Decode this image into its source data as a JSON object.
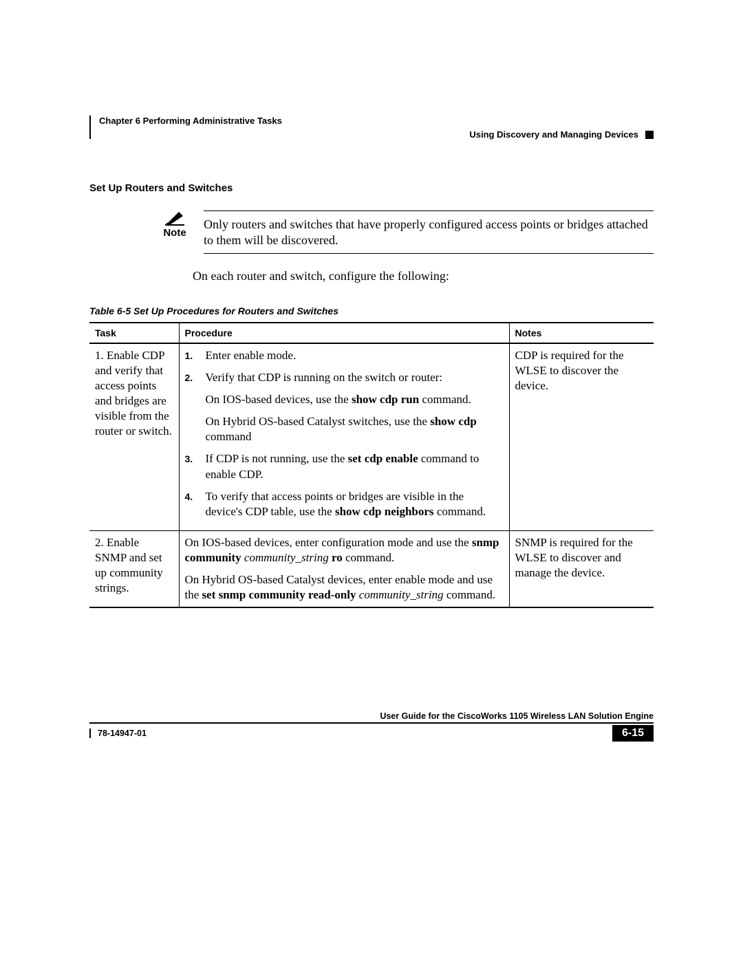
{
  "header": {
    "chapter": "Chapter 6      Performing Administrative Tasks",
    "subheader": "Using Discovery and Managing Devices"
  },
  "section_title": "Set Up Routers and Switches",
  "note": {
    "label": "Note",
    "text": "Only routers and switches that have properly configured access points or bridges attached to them will be discovered."
  },
  "intro": "On each router and switch, configure the following:",
  "table": {
    "caption": "Table 6-5    Set Up Procedures for Routers and Switches",
    "columns": [
      "Task",
      "Procedure",
      "Notes"
    ],
    "rows": [
      {
        "task": "1. Enable CDP and verify that access points and bridges are visible from the router or switch.",
        "procedure_type": "ol",
        "steps": [
          {
            "text": "Enter enable mode."
          },
          {
            "text": "Verify that CDP is running on the switch or router:",
            "sub": [
              {
                "html": "On IOS-based devices, use the <b>show cdp run</b> command."
              },
              {
                "html": "On Hybrid OS-based Catalyst switches, use the <b>show cdp</b> command"
              }
            ]
          },
          {
            "html": "If CDP is not running, use the <b>set cdp enable</b> command to enable CDP."
          },
          {
            "html": "To verify that access points or bridges are visible in the device's CDP table, use the <b>show cdp neighbors</b> command."
          }
        ],
        "notes": "CDP is required for the WLSE to discover the device."
      },
      {
        "task": "2. Enable SNMP and set up community strings.",
        "procedure_type": "paras",
        "paras": [
          {
            "html": "On IOS-based devices, enter configuration mode and use the <b>snmp community</b> <i>community_string</i> <b>ro</b> command."
          },
          {
            "html": "On Hybrid OS-based Catalyst devices, enter enable mode and use the <b>set snmp community read-only</b> <i>community_string</i> command."
          }
        ],
        "notes": "SNMP is required for the WLSE to discover and manage the device."
      }
    ]
  },
  "footer": {
    "guide_title": "User Guide for the CiscoWorks 1105 Wireless LAN Solution Engine",
    "docnum": "78-14947-01",
    "pagenum": "6-15"
  },
  "colors": {
    "text": "#000000",
    "bg": "#ffffff"
  }
}
